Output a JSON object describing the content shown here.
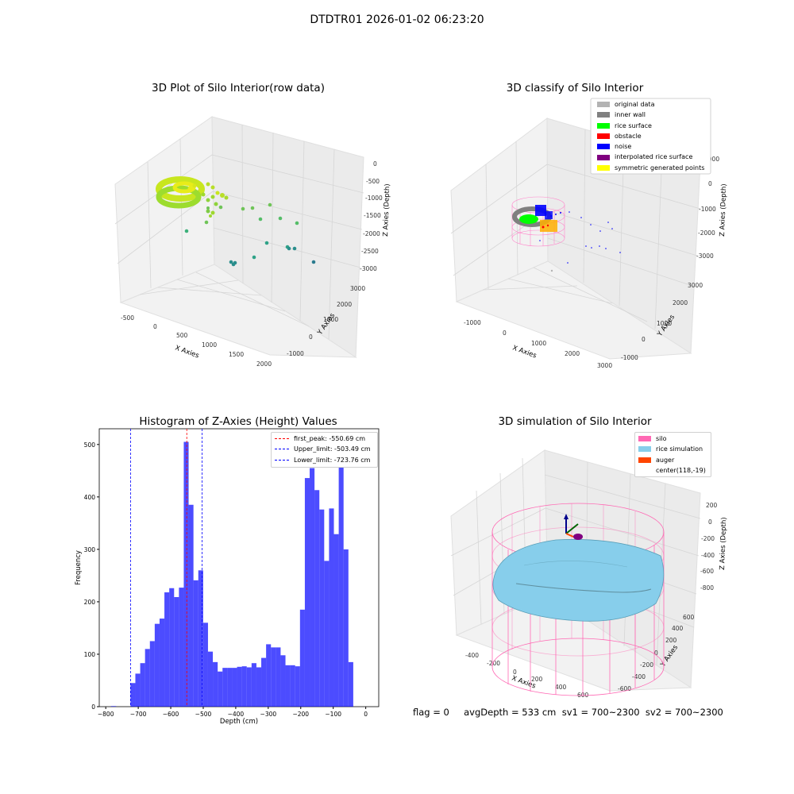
{
  "figure": {
    "suptitle": "DTDTR01 2026-01-02 06:23:20"
  },
  "panel_tl": {
    "title": "3D Plot of Silo Interior(row data)",
    "xlabel": "X Axies",
    "ylabel": "Y Axies",
    "zlabel": "Z Axies (Depth)",
    "xticks": [
      "-500",
      "0",
      "500",
      "1000",
      "1500",
      "2000"
    ],
    "yticks": [
      "-1000",
      "0",
      "1000",
      "2000",
      "3000"
    ],
    "zticks": [
      "0",
      "-500",
      "-1000",
      "-1500",
      "-2000",
      "-2500",
      "-3000"
    ]
  },
  "panel_tr": {
    "title": "3D classify of Silo Interior",
    "xlabel": "X Axies",
    "ylabel": "Y Axies",
    "zlabel": "Z Axies (Depth)",
    "xticks": [
      "-1000",
      "0",
      "1000",
      "2000",
      "3000"
    ],
    "yticks": [
      "-1000",
      "0",
      "1000",
      "2000",
      "3000"
    ],
    "zticks": [
      "1000",
      "0",
      "-1000",
      "-2000",
      "-3000"
    ],
    "legend": [
      {
        "label": "original data",
        "color": "#b3b3b3"
      },
      {
        "label": "inner wall",
        "color": "#808080"
      },
      {
        "label": "rice surface",
        "color": "#00ff00"
      },
      {
        "label": "obstacle",
        "color": "#ff0000"
      },
      {
        "label": "noise",
        "color": "#0000ff"
      },
      {
        "label": "interpolated rice surface",
        "color": "#800080"
      },
      {
        "label": "symmetric generated points",
        "color": "#ffff00"
      }
    ]
  },
  "panel_bl": {
    "title": "Histogram of Z-Axies (Height) Values",
    "xlabel": "Depth (cm)",
    "ylabel": "Frequency",
    "legend": [
      {
        "label": "first_peak: -550.69 cm",
        "color": "#ff0000"
      },
      {
        "label": "Upper_limit: -503.49 cm",
        "color": "#0000ff"
      },
      {
        "label": "Lower_limit: -723.76 cm",
        "color": "#0000ff"
      }
    ]
  },
  "panel_br": {
    "title": "3D simulation of Silo Interior",
    "xlabel": "X Axies",
    "ylabel": "Y Axies",
    "zlabel": "Z Axies (Depth)",
    "xticks": [
      "-400",
      "-200",
      "0",
      "200",
      "400",
      "600"
    ],
    "yticks": [
      "-600",
      "-400",
      "-200",
      "0",
      "200",
      "400",
      "600"
    ],
    "zticks": [
      "200",
      "0",
      "-200",
      "-400",
      "-600",
      "-800"
    ],
    "legend": [
      {
        "label": "silo",
        "color": "#ff69b4"
      },
      {
        "label": "rice simulation",
        "color": "#87ceeb"
      },
      {
        "label": "auger",
        "color": "#ff4500"
      },
      {
        "label": "center(118,-19)",
        "color": ""
      }
    ]
  },
  "status_line": "flag = 0     avgDepth = 533 cm  sv1 = 700~2300  sv2 = 700~2300",
  "chart_data": {
    "type": "bar",
    "title": "Histogram of Z-Axies (Height) Values",
    "xlabel": "Depth (cm)",
    "ylabel": "Frequency",
    "xlim": [
      -820,
      40
    ],
    "ylim": [
      0,
      530
    ],
    "xticks": [
      -800,
      -700,
      -600,
      -500,
      -400,
      -300,
      -200,
      -100,
      0
    ],
    "yticks": [
      0,
      100,
      200,
      300,
      400,
      500
    ],
    "bar_color": "#0000ff",
    "bins": [
      [
        -784,
        -768,
        1
      ],
      [
        -768,
        -752,
        0
      ],
      [
        -752,
        -736,
        0
      ],
      [
        -736,
        -723.8,
        0
      ],
      [
        -723.8,
        -708.9,
        45
      ],
      [
        -708.9,
        -694.0,
        63
      ],
      [
        -694.0,
        -679.1,
        83
      ],
      [
        -679.1,
        -664.2,
        110
      ],
      [
        -664.2,
        -649.3,
        125
      ],
      [
        -649.3,
        -634.4,
        158
      ],
      [
        -634.4,
        -619.5,
        168
      ],
      [
        -619.5,
        -604.6,
        218
      ],
      [
        -604.6,
        -589.7,
        226
      ],
      [
        -589.7,
        -574.8,
        209
      ],
      [
        -574.8,
        -559.9,
        227
      ],
      [
        -559.9,
        -545.0,
        505
      ],
      [
        -545.0,
        -530.1,
        385
      ],
      [
        -530.1,
        -515.2,
        241
      ],
      [
        -515.2,
        -500.3,
        260
      ],
      [
        -500.3,
        -485.4,
        160
      ],
      [
        -485.4,
        -470.5,
        105
      ],
      [
        -470.5,
        -455.6,
        85
      ],
      [
        -455.6,
        -440.7,
        67
      ],
      [
        -440.7,
        -425.8,
        74
      ],
      [
        -425.8,
        -410.9,
        74
      ],
      [
        -410.9,
        -396.0,
        74
      ],
      [
        -396.0,
        -381.1,
        76
      ],
      [
        -381.1,
        -366.2,
        77
      ],
      [
        -366.2,
        -351.3,
        75
      ],
      [
        -351.3,
        -336.4,
        83
      ],
      [
        -336.4,
        -321.5,
        75
      ],
      [
        -321.5,
        -306.6,
        93
      ],
      [
        -306.6,
        -291.7,
        119
      ],
      [
        -291.7,
        -276.8,
        113
      ],
      [
        -276.8,
        -261.9,
        113
      ],
      [
        -261.9,
        -247.0,
        98
      ],
      [
        -247.0,
        -232.1,
        79
      ],
      [
        -232.1,
        -217.2,
        79
      ],
      [
        -217.2,
        -202.3,
        77
      ],
      [
        -202.3,
        -187.4,
        185
      ],
      [
        -187.4,
        -172.5,
        436
      ],
      [
        -172.5,
        -157.6,
        455
      ],
      [
        -157.6,
        -142.7,
        413
      ],
      [
        -142.7,
        -127.8,
        376
      ],
      [
        -127.8,
        -112.9,
        278
      ],
      [
        -112.9,
        -98.0,
        378
      ],
      [
        -98.0,
        -83.1,
        329
      ],
      [
        -83.1,
        -68.2,
        500
      ],
      [
        -68.2,
        -53.3,
        300
      ],
      [
        -53.3,
        -38.4,
        85
      ]
    ],
    "vlines": [
      {
        "name": "first_peak",
        "x": -550.69,
        "color": "#ff0000"
      },
      {
        "name": "Upper_limit",
        "x": -503.49,
        "color": "#0000ff"
      },
      {
        "name": "Lower_limit",
        "x": -723.76,
        "color": "#0000ff"
      }
    ]
  }
}
